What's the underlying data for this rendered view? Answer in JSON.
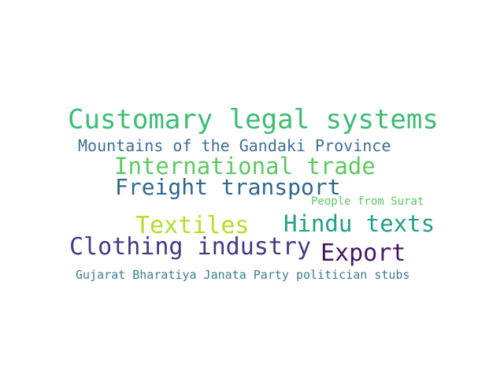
{
  "word_cloud": {
    "words": [
      {
        "text": "Customary legal systems",
        "color": "#3dbc74"
      },
      {
        "text": "Mountains of the Gandaki Province",
        "color": "#3f6f92"
      },
      {
        "text": "International trade",
        "color": "#5ec962"
      },
      {
        "text": "Freight transport",
        "color": "#30678d"
      },
      {
        "text": "People from Surat",
        "color": "#5cc863"
      },
      {
        "text": "Textiles",
        "color": "#b5de2b"
      },
      {
        "text": "Hindu texts",
        "color": "#23a083"
      },
      {
        "text": "Clothing industry",
        "color": "#443a83"
      },
      {
        "text": "Export",
        "color": "#471365"
      },
      {
        "text": "Gujarat Bharatiya Janata Party politician stubs",
        "color": "#3b7c8c"
      }
    ]
  }
}
